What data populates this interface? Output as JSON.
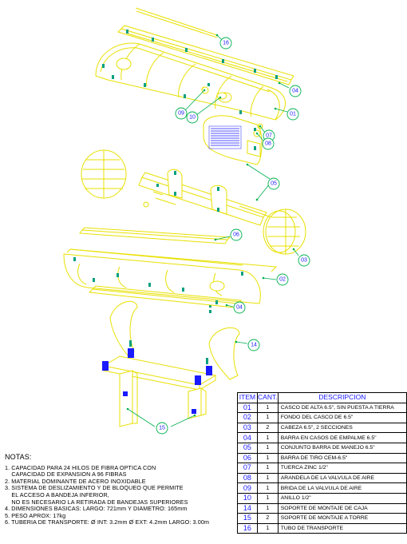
{
  "callouts": [
    {
      "id": "c16",
      "label": "16"
    },
    {
      "id": "c04a",
      "label": "04"
    },
    {
      "id": "c01",
      "label": "01"
    },
    {
      "id": "c09",
      "label": "09"
    },
    {
      "id": "c10",
      "label": "10"
    },
    {
      "id": "c07",
      "label": "07"
    },
    {
      "id": "c08",
      "label": "08"
    },
    {
      "id": "c05",
      "label": "05"
    },
    {
      "id": "c06",
      "label": "06"
    },
    {
      "id": "c03",
      "label": "03"
    },
    {
      "id": "c02",
      "label": "02"
    },
    {
      "id": "c04b",
      "label": "04"
    },
    {
      "id": "c14",
      "label": "14"
    },
    {
      "id": "c15",
      "label": "15"
    }
  ],
  "notes": {
    "title": "NOTAS:",
    "items": [
      "1. CAPACIDAD PARA 24 HILOS DE FIBRA OPTICA CON",
      "    CAPACIDAD DE EXPANSION A 96 FIBRAS",
      "2. MATERIAL DOMINANTE DE ACERO INOXIDABLE",
      "3. SISTEMA DE DESLIZAMIENTO Y DE BLOQUEO QUE PERMITE",
      "    EL ACCESO A BANDEJA INFERIOR,",
      "    NO ES NECESARIO LA RETIRADA DE BANDEJAS SUPERIORES",
      "4. DIMENSIONES BASICAS: LARGO: 721mm Y DIAMETRO: 165mm",
      "5. PESO APROX: 17kg",
      "6. TUBERIA DE TRANSPORTE: Ø INT: 3.2mm Ø EXT: 4.2mm LARGO: 3.00m"
    ]
  },
  "bom": {
    "headers": {
      "item": "ITEM",
      "qty": "CANT.",
      "desc": "DESCRIPCION"
    },
    "rows": [
      {
        "item": "01",
        "qty": "1",
        "desc": "CASCO DE ALTA 6.5\", SIN PUESTA A TIERRA"
      },
      {
        "item": "02",
        "qty": "1",
        "desc": "  FONDO DEL CASCO DE 6.5\""
      },
      {
        "item": "03",
        "qty": "2",
        "desc": "CABEZA 6.5\", 2 SECCIONES"
      },
      {
        "item": "04",
        "qty": "1",
        "desc": "BARRA EN CASOS DE EMPALME 6.5\""
      },
      {
        "item": "05",
        "qty": "1",
        "desc": "CONJUNTO BARRA DE MANEJO 6.5\""
      },
      {
        "item": "06",
        "qty": "1",
        "desc": "  BARRA DE TIRO CEM-6.5\""
      },
      {
        "item": "07",
        "qty": "1",
        "desc": "    TUERCA ZINC 1/2\""
      },
      {
        "item": "08",
        "qty": "1",
        "desc": "ARANDELA DE LA VALVULA DE AIRE"
      },
      {
        "item": "09",
        "qty": "1",
        "desc": "BRIDA DE LA VALVULA DE AIRE"
      },
      {
        "item": "10",
        "qty": "1",
        "desc": "    ANILLO 1/2\""
      },
      {
        "item": "14",
        "qty": "1",
        "desc": "SOPORTE DE MONTAJE DE CAJA"
      },
      {
        "item": "15",
        "qty": "2",
        "desc": "SOPORTE DE MONTAJE A TORRE"
      },
      {
        "item": "16",
        "qty": "1",
        "desc": "TUBO DE TRANSPORTE"
      }
    ]
  },
  "colors": {
    "drawing": "#e8e000",
    "leader": "#00b050",
    "label": "#1a1aff"
  }
}
